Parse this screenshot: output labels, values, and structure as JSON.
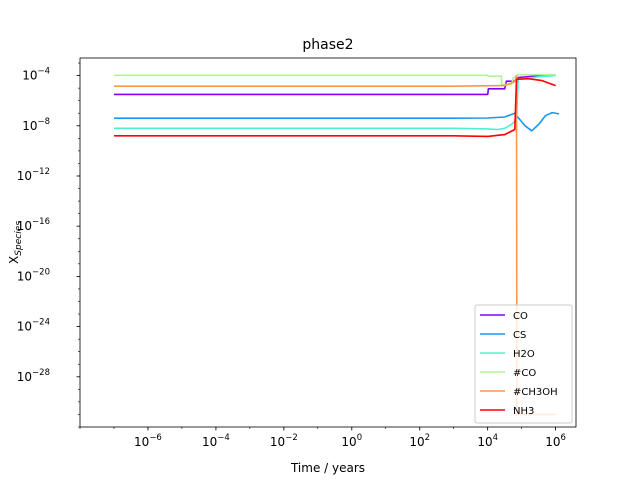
{
  "chart_data": {
    "type": "line",
    "title": "phase2",
    "xlabel": "Time / years",
    "ylabel": {
      "base": "X",
      "sub": "Species"
    },
    "x_scale": "log",
    "y_scale": "log",
    "xlim_exp": [
      -8,
      6.6
    ],
    "ylim_exp": [
      -32,
      -2.6
    ],
    "x_ticks": [
      {
        "exp": -6,
        "label": "10",
        "sup": "−6"
      },
      {
        "exp": -4,
        "label": "10",
        "sup": "−4"
      },
      {
        "exp": -2,
        "label": "10",
        "sup": "−2"
      },
      {
        "exp": 0,
        "label": "10",
        "sup": "0"
      },
      {
        "exp": 2,
        "label": "10",
        "sup": "2"
      },
      {
        "exp": 4,
        "label": "10",
        "sup": "4"
      },
      {
        "exp": 6,
        "label": "10",
        "sup": "6"
      }
    ],
    "y_ticks": [
      {
        "exp": -28,
        "label": "10",
        "sup": "−28"
      },
      {
        "exp": -24,
        "label": "10",
        "sup": "−24"
      },
      {
        "exp": -20,
        "label": "10",
        "sup": "−20"
      },
      {
        "exp": -16,
        "label": "10",
        "sup": "−16"
      },
      {
        "exp": -12,
        "label": "10",
        "sup": "−12"
      },
      {
        "exp": -8,
        "label": "10",
        "sup": "−8"
      },
      {
        "exp": -4,
        "label": "10",
        "sup": "−4"
      }
    ],
    "legend_position": "lower right",
    "series": [
      {
        "name": "CO",
        "color": "#8000ff",
        "points": [
          [
            -7,
            -5.5
          ],
          [
            4,
            -5.5
          ],
          [
            4.02,
            -5.05
          ],
          [
            4.5,
            -5.05
          ],
          [
            4.55,
            -4.45
          ],
          [
            4.88,
            -4.45
          ],
          [
            4.9,
            -4.15
          ],
          [
            5.5,
            -4.02
          ],
          [
            6,
            -3.95
          ]
        ]
      },
      {
        "name": "CS",
        "color": "#1996f3",
        "points": [
          [
            -7,
            -7.4
          ],
          [
            3,
            -7.4
          ],
          [
            4,
            -7.38
          ],
          [
            4.5,
            -7.3
          ],
          [
            4.8,
            -7.0
          ],
          [
            4.9,
            -7.35
          ],
          [
            5.1,
            -8.0
          ],
          [
            5.3,
            -8.4
          ],
          [
            5.5,
            -7.9
          ],
          [
            5.7,
            -7.2
          ],
          [
            5.9,
            -6.95
          ],
          [
            6.1,
            -7.05
          ]
        ]
      },
      {
        "name": "H2O",
        "color": "#4cf2ce",
        "points": [
          [
            -7,
            -8.2
          ],
          [
            3,
            -8.2
          ],
          [
            4,
            -8.25
          ],
          [
            4.3,
            -8.3
          ],
          [
            4.5,
            -8.2
          ],
          [
            4.7,
            -7.9
          ],
          [
            4.85,
            -7.5
          ],
          [
            4.9,
            -4.3
          ],
          [
            5.5,
            -4.1
          ],
          [
            6,
            -4.0
          ]
        ]
      },
      {
        "name": "#CO",
        "color": "#b2f396",
        "points": [
          [
            -7,
            -3.98
          ],
          [
            4,
            -3.98
          ],
          [
            4.01,
            -4.05
          ],
          [
            4.4,
            -4.05
          ],
          [
            4.42,
            -4.7
          ],
          [
            4.7,
            -4.7
          ],
          [
            4.75,
            -4.2
          ],
          [
            4.85,
            -4.05
          ],
          [
            4.88,
            -3.95
          ],
          [
            5.5,
            -3.93
          ],
          [
            6,
            -3.92
          ]
        ]
      },
      {
        "name": "#CH3OH",
        "color": "#ff964f",
        "points": [
          [
            -7,
            -4.85
          ],
          [
            3,
            -4.85
          ],
          [
            4.5,
            -4.8
          ],
          [
            4.8,
            -4.5
          ],
          [
            4.85,
            -4.0
          ],
          [
            4.86,
            -31.0
          ],
          [
            6,
            -31.0
          ]
        ]
      },
      {
        "name": "NH3",
        "color": "#ff0000",
        "points": [
          [
            -7,
            -8.8
          ],
          [
            3,
            -8.8
          ],
          [
            4,
            -8.85
          ],
          [
            4.5,
            -8.7
          ],
          [
            4.8,
            -8.3
          ],
          [
            4.85,
            -4.3
          ],
          [
            5.2,
            -4.25
          ],
          [
            5.6,
            -4.4
          ],
          [
            6,
            -4.8
          ]
        ]
      }
    ]
  }
}
